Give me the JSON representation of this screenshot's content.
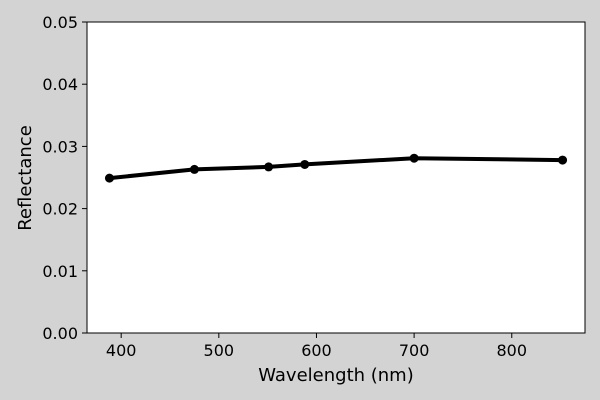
{
  "chart_data": {
    "type": "line",
    "title": "",
    "xlabel": "Wavelength (nm)",
    "ylabel": "Reflectance",
    "xlim": [
      365,
      875
    ],
    "ylim": [
      0.0,
      0.05
    ],
    "xticks": [
      400,
      500,
      600,
      700,
      800
    ],
    "xtick_labels": [
      "400",
      "500",
      "600",
      "700",
      "800"
    ],
    "yticks": [
      0.0,
      0.01,
      0.02,
      0.03,
      0.04,
      0.05
    ],
    "ytick_labels": [
      "0.00",
      "0.01",
      "0.02",
      "0.03",
      "0.04",
      "0.05"
    ],
    "grid": false,
    "legend": "none",
    "series": [
      {
        "x": [
          388,
          475,
          551,
          588,
          700,
          852
        ],
        "y": [
          0.0249,
          0.0263,
          0.0267,
          0.0271,
          0.0281,
          0.0278
        ],
        "color": "#000000",
        "marker": "circle"
      }
    ]
  }
}
